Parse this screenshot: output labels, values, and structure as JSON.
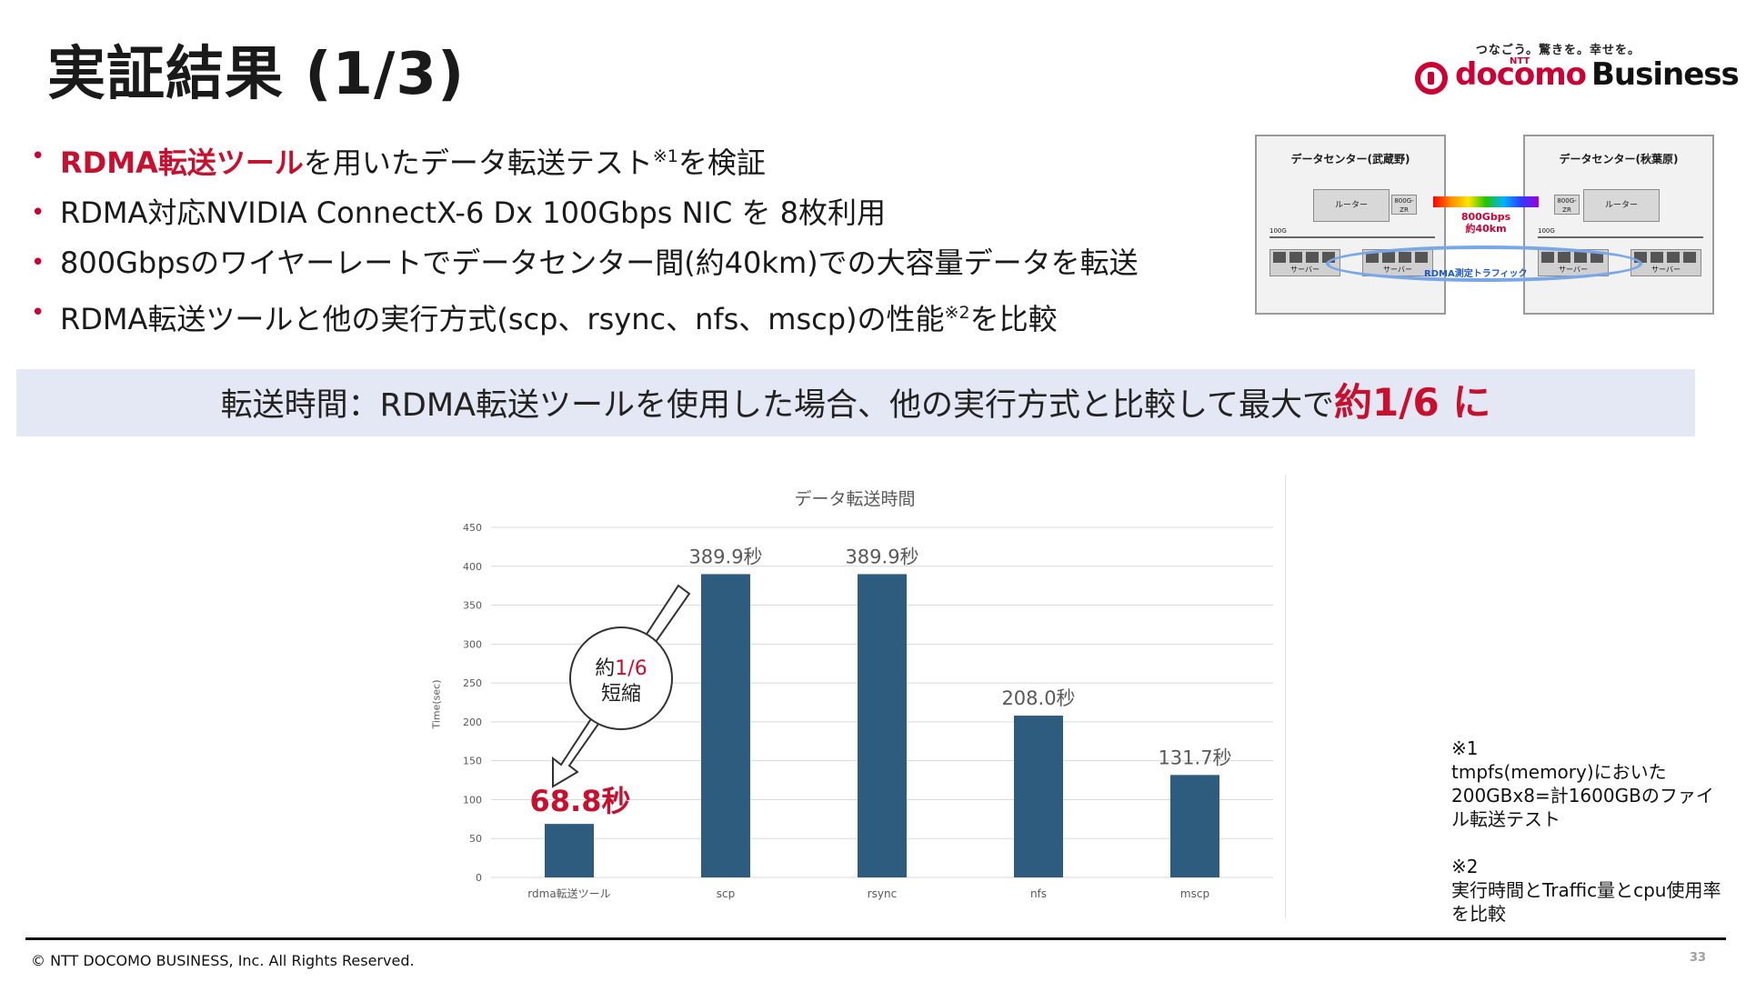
{
  "slide": {
    "title": "実証結果 (1/3)",
    "page_number": "33",
    "copyright": "© NTT DOCOMO BUSINESS, Inc. All Rights Reserved."
  },
  "logo": {
    "tagline": "つなごう。驚きを。幸せを。",
    "ntt": "NTT",
    "docomo": "docomo",
    "business": "Business"
  },
  "bullets": [
    {
      "highlight": "RDMA転送ツール",
      "text": "を用いたデータ転送テスト",
      "sup": "※1",
      "after": "を検証"
    },
    {
      "text": "RDMA対応NVIDIA ConnectX-6 Dx 100Gbps NIC を 8枚利用"
    },
    {
      "text": "800Gbpsのワイヤーレートでデータセンター間(約40km)での大容量データを転送"
    },
    {
      "text": "RDMA転送ツールと他の実行方式(scp、rsync、nfs、mscp)の性能",
      "sup": "※2",
      "after": "を比較"
    }
  ],
  "diagram": {
    "left_dc": "データセンター(武蔵野)",
    "right_dc": "データセンター(秋葉原)",
    "router": "ルーター",
    "zr": "800G-ZR",
    "port_speed": "100G",
    "server": "サーバー",
    "nic": "NIC",
    "link_speed": "800Gbps",
    "distance": "約40km",
    "traffic": "RDMA測定トラフィック"
  },
  "banner": {
    "text": "転送時間：RDMA転送ツールを使用した場合、他の実行方式と比較して最大で",
    "highlight": "約1/6 に"
  },
  "chart_data": {
    "type": "bar",
    "title": "データ転送時間",
    "ylabel": "Time(sec)",
    "xlabel": "",
    "categories": [
      "rdma転送ツール",
      "scp",
      "rsync",
      "nfs",
      "mscp"
    ],
    "values": [
      68.8,
      389.9,
      389.9,
      208.0,
      131.7
    ],
    "data_labels": [
      "68.8秒",
      "389.9秒",
      "389.9秒",
      "208.0秒",
      "131.7秒"
    ],
    "ylim": [
      0,
      450
    ],
    "yticks": [
      0,
      50,
      100,
      150,
      200,
      250,
      300,
      350,
      400,
      450
    ],
    "grid": true,
    "colors": {
      "bar": "#2e5c7f",
      "highlight_label": "#c8102e",
      "label": "#595959"
    },
    "annotation": {
      "line1": "約",
      "ratio": "1/6",
      "line2": "短縮"
    }
  },
  "notes": [
    {
      "mark": "※1",
      "text": "tmpfs(memory)においた200GBx8=計1600GBのファイル転送テスト"
    },
    {
      "mark": "※2",
      "text": "実行時間とTraffic量とcpu使用率を比較"
    }
  ]
}
